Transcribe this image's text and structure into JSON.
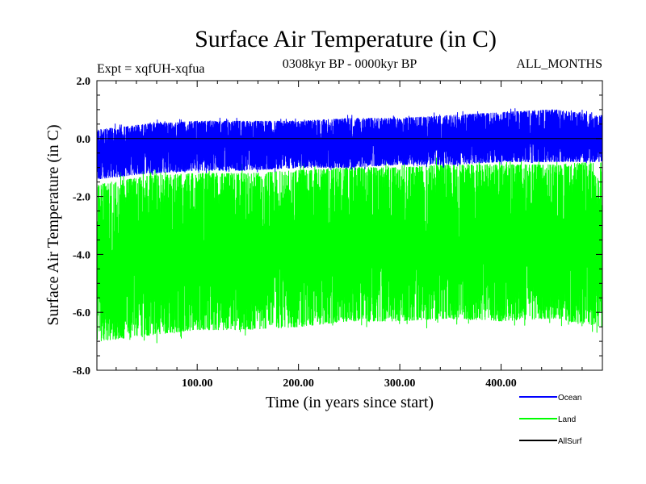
{
  "chart_data": {
    "type": "line",
    "title": "Surface Air Temperature (in C)",
    "subtitle_left": "Expt = xqfUH-xqfua",
    "subtitle_center": "0308kyr BP - 0000kyr BP",
    "subtitle_right": "ALL_MONTHS",
    "xlabel": "Time (in years since start)",
    "ylabel": "Surface Air Temperature (in C)",
    "xlim": [
      1,
      500
    ],
    "ylim": [
      -8.0,
      2.0
    ],
    "xticks": [
      100,
      200,
      300,
      400
    ],
    "xtick_labels": [
      "100.00",
      "200.00",
      "300.00",
      "400.00"
    ],
    "yticks": [
      2.0,
      0.0,
      -2.0,
      -4.0,
      -6.0,
      -8.0
    ],
    "ytick_labels": [
      "2.0",
      "0.0",
      "-2.0",
      "-4.0",
      "-6.0",
      "-8.0"
    ],
    "zero_line": 0.0,
    "series": [
      {
        "name": "Ocean",
        "color": "#0000ff",
        "range_description": "monthly values roughly between -1.4 and 1.1",
        "envelope": {
          "x": [
            1,
            50,
            100,
            150,
            200,
            250,
            300,
            350,
            400,
            450,
            500
          ],
          "upper": [
            0.3,
            0.5,
            0.6,
            0.6,
            0.6,
            0.7,
            0.7,
            0.8,
            0.9,
            1.0,
            0.8
          ],
          "lower": [
            -1.4,
            -1.2,
            -1.1,
            -1.1,
            -1.0,
            -1.0,
            -0.9,
            -0.9,
            -0.8,
            -0.8,
            -0.8
          ]
        }
      },
      {
        "name": "Land",
        "color": "#00ff00",
        "range_description": "monthly values roughly between -7.0 and -0.8",
        "envelope": {
          "x": [
            1,
            50,
            100,
            150,
            200,
            250,
            300,
            350,
            400,
            450,
            500
          ],
          "upper": [
            -1.6,
            -1.3,
            -1.2,
            -1.2,
            -1.1,
            -1.0,
            -1.0,
            -0.9,
            -0.9,
            -0.9,
            -0.8
          ],
          "lower": [
            -7.0,
            -6.8,
            -6.6,
            -6.6,
            -6.5,
            -6.3,
            -6.3,
            -6.2,
            -6.3,
            -6.2,
            -6.5
          ]
        }
      },
      {
        "name": "AllSurf",
        "color": "#000000",
        "range_description": "near zero baseline",
        "envelope": {
          "x": [
            1,
            500
          ],
          "upper": [
            0.0,
            0.0
          ],
          "lower": [
            0.0,
            0.0
          ]
        }
      }
    ],
    "legend": {
      "placement": "bottom-right"
    }
  }
}
